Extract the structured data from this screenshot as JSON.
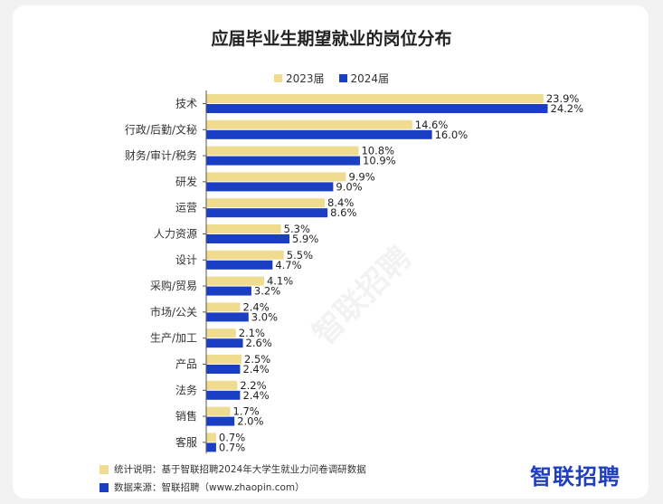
{
  "title": "应届毕业生期望就业的岗位分布",
  "legend": [
    {
      "label": "2023届",
      "color": "#f0dc8e"
    },
    {
      "label": "2024届",
      "color": "#1b3fc4"
    }
  ],
  "footer": {
    "method_label": "统计说明：基于智联招聘2024年大学生就业力问卷调研数据",
    "source_label": "数据来源：智联招聘（www.zhaopin.com）"
  },
  "brand": "智联招聘",
  "watermark": "智联招聘",
  "chart_data": {
    "type": "bar",
    "orientation": "horizontal",
    "title": "应届毕业生期望就业的岗位分布",
    "categories": [
      "技术",
      "行政/后勤/文秘",
      "财务/审计/税务",
      "研发",
      "运营",
      "人力资源",
      "设计",
      "采购/贸易",
      "市场/公关",
      "生产/加工",
      "产品",
      "法务",
      "销售",
      "客服"
    ],
    "series": [
      {
        "name": "2023届",
        "color": "#f0dc8e",
        "values": [
          23.9,
          14.6,
          10.8,
          9.9,
          8.4,
          5.3,
          5.5,
          4.1,
          2.4,
          2.1,
          2.5,
          2.2,
          1.7,
          0.7
        ]
      },
      {
        "name": "2024届",
        "color": "#1b3fc4",
        "values": [
          24.2,
          16.0,
          10.9,
          9.0,
          8.6,
          5.9,
          4.7,
          3.2,
          3.0,
          2.6,
          2.4,
          2.4,
          2.0,
          0.7
        ]
      }
    ],
    "value_suffix": "%",
    "grid": false,
    "legend_position": "top-center"
  }
}
